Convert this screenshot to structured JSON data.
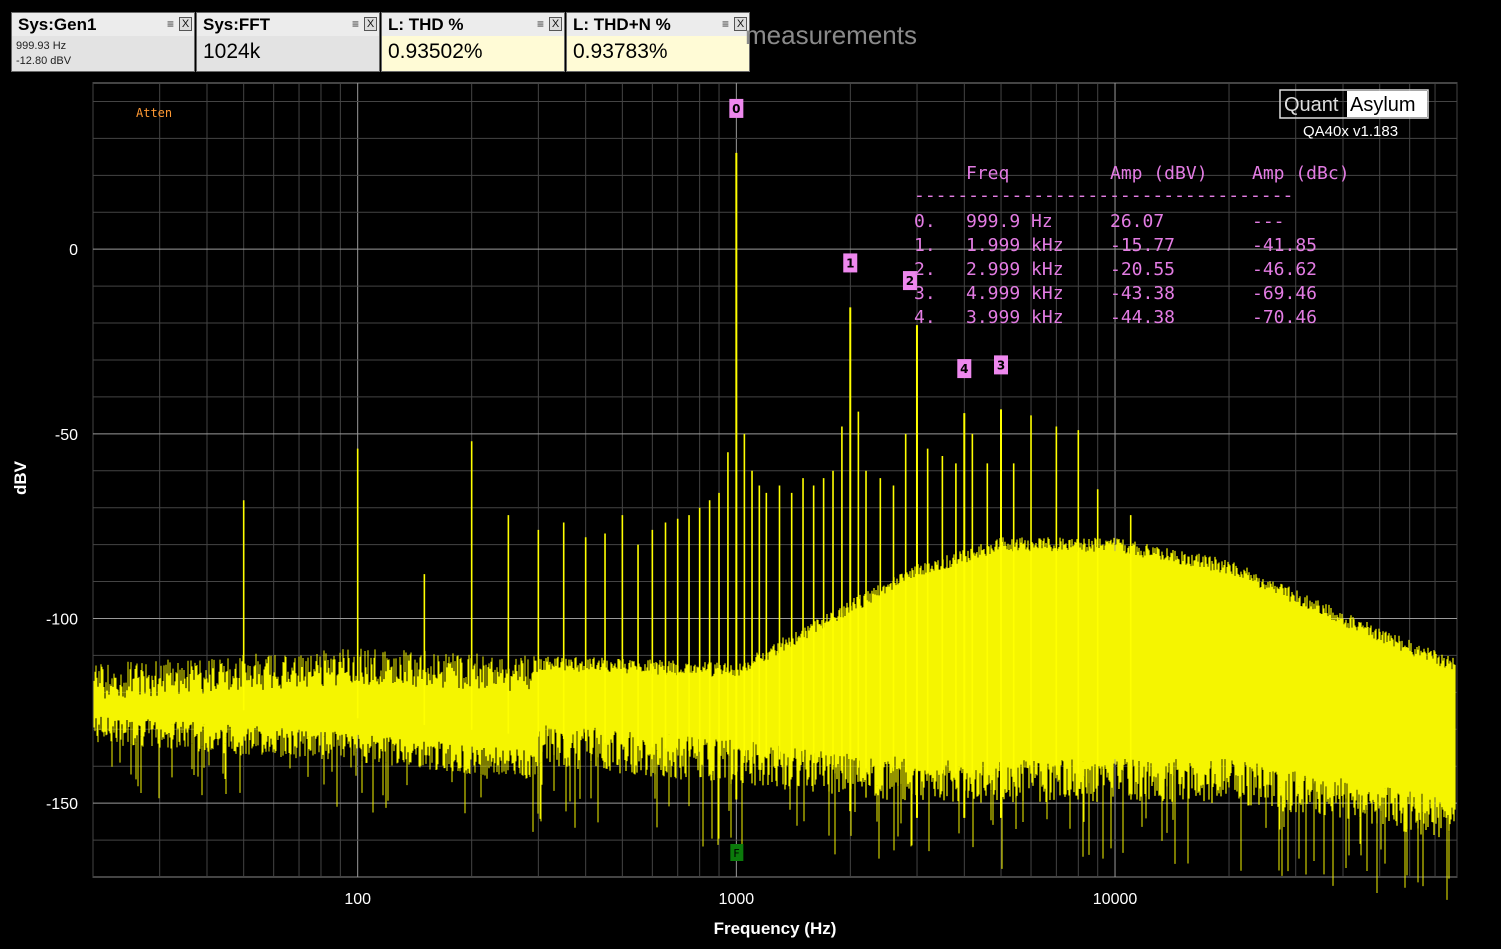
{
  "widgets": [
    {
      "title": "Sys:Gen1",
      "line1": "999.93 Hz",
      "line2": "-12.80 dBV"
    },
    {
      "title": "Sys:FFT",
      "value": "1024k"
    },
    {
      "title": "L: THD %",
      "value": "0.93502%"
    },
    {
      "title": "L: THD+N %",
      "value": "0.93783%"
    }
  ],
  "widget_buttons": {
    "menu": "≡",
    "close": "X"
  },
  "background_title": "measurements",
  "logo": {
    "left": "Quant",
    "right": "Asylum",
    "version": "QA40x v1.183"
  },
  "atten_label": "Atten",
  "fundamental_marker": "F",
  "peak_table": {
    "headers": [
      "Freq",
      "Amp (dBV)",
      "Amp (dBc)"
    ],
    "separator": "-----------------------------------",
    "rows": [
      {
        "idx": "0.",
        "freq": "999.9 Hz",
        "dbv": "26.07",
        "dbc": "---"
      },
      {
        "idx": "1.",
        "freq": "1.999 kHz",
        "dbv": "-15.77",
        "dbc": "-41.85"
      },
      {
        "idx": "2.",
        "freq": "2.999 kHz",
        "dbv": "-20.55",
        "dbc": "-46.62"
      },
      {
        "idx": "3.",
        "freq": "4.999 kHz",
        "dbv": "-43.38",
        "dbc": "-69.46"
      },
      {
        "idx": "4.",
        "freq": "3.999 kHz",
        "dbv": "-44.38",
        "dbc": "-70.46"
      }
    ]
  },
  "chart_data": {
    "type": "line",
    "xlabel": "Frequency (Hz)",
    "ylabel": "dBV",
    "x_scale": "log",
    "xlim": [
      20,
      80000
    ],
    "ylim": [
      -170,
      45
    ],
    "x_ticks": [
      100,
      1000,
      10000
    ],
    "x_tick_labels": [
      "100",
      "1000",
      "10000"
    ],
    "y_ticks": [
      0,
      -50,
      -100,
      -150
    ],
    "y_tick_labels": [
      "0",
      "-50",
      "-100",
      "-150"
    ],
    "grid": true,
    "series_color": "#ffff00",
    "noise_floor_envelope": [
      {
        "x": 20,
        "lo": -130,
        "hi": -112
      },
      {
        "x": 100,
        "lo": -135,
        "hi": -108
      },
      {
        "x": 300,
        "lo": -140,
        "hi": -110
      },
      {
        "x": 1000,
        "lo": -145,
        "hi": -112
      },
      {
        "x": 3000,
        "lo": -150,
        "hi": -85
      },
      {
        "x": 5000,
        "lo": -150,
        "hi": -78
      },
      {
        "x": 10000,
        "lo": -150,
        "hi": -78
      },
      {
        "x": 20000,
        "lo": -150,
        "hi": -84
      },
      {
        "x": 40000,
        "lo": -155,
        "hi": -98
      },
      {
        "x": 75000,
        "lo": -160,
        "hi": -110
      }
    ],
    "spurs": [
      {
        "x": 50,
        "y": -68
      },
      {
        "x": 100,
        "y": -54
      },
      {
        "x": 150,
        "y": -88
      },
      {
        "x": 200,
        "y": -52
      },
      {
        "x": 250,
        "y": -72
      },
      {
        "x": 300,
        "y": -76
      },
      {
        "x": 350,
        "y": -74
      },
      {
        "x": 400,
        "y": -78
      },
      {
        "x": 450,
        "y": -77
      },
      {
        "x": 500,
        "y": -72
      },
      {
        "x": 550,
        "y": -80
      },
      {
        "x": 600,
        "y": -76
      },
      {
        "x": 650,
        "y": -74
      },
      {
        "x": 700,
        "y": -73
      },
      {
        "x": 750,
        "y": -72
      },
      {
        "x": 800,
        "y": -70
      },
      {
        "x": 850,
        "y": -68
      },
      {
        "x": 900,
        "y": -66
      },
      {
        "x": 950,
        "y": -55
      },
      {
        "x": 1050,
        "y": -50
      },
      {
        "x": 1100,
        "y": -60
      },
      {
        "x": 1150,
        "y": -64
      },
      {
        "x": 1200,
        "y": -66
      },
      {
        "x": 1300,
        "y": -64
      },
      {
        "x": 1400,
        "y": -66
      },
      {
        "x": 1500,
        "y": -62
      },
      {
        "x": 1600,
        "y": -64
      },
      {
        "x": 1700,
        "y": -62
      },
      {
        "x": 1800,
        "y": -60
      },
      {
        "x": 1900,
        "y": -48
      },
      {
        "x": 2100,
        "y": -44
      },
      {
        "x": 2200,
        "y": -60
      },
      {
        "x": 2400,
        "y": -62
      },
      {
        "x": 2600,
        "y": -64
      },
      {
        "x": 2800,
        "y": -50
      },
      {
        "x": 3200,
        "y": -54
      },
      {
        "x": 3500,
        "y": -56
      },
      {
        "x": 3800,
        "y": -58
      },
      {
        "x": 4200,
        "y": -50
      },
      {
        "x": 4600,
        "y": -58
      },
      {
        "x": 5400,
        "y": -58
      },
      {
        "x": 6000,
        "y": -45
      },
      {
        "x": 7000,
        "y": -48
      },
      {
        "x": 8000,
        "y": -49
      },
      {
        "x": 9000,
        "y": -65
      },
      {
        "x": 11000,
        "y": -72
      }
    ],
    "peaks": [
      {
        "label": "0",
        "x": 999.9,
        "y": 26.07
      },
      {
        "label": "1",
        "x": 1999,
        "y": -15.77
      },
      {
        "label": "2",
        "x": 2999,
        "y": -20.55
      },
      {
        "label": "3",
        "x": 4999,
        "y": -43.38
      },
      {
        "label": "4",
        "x": 3999,
        "y": -44.38
      }
    ]
  }
}
